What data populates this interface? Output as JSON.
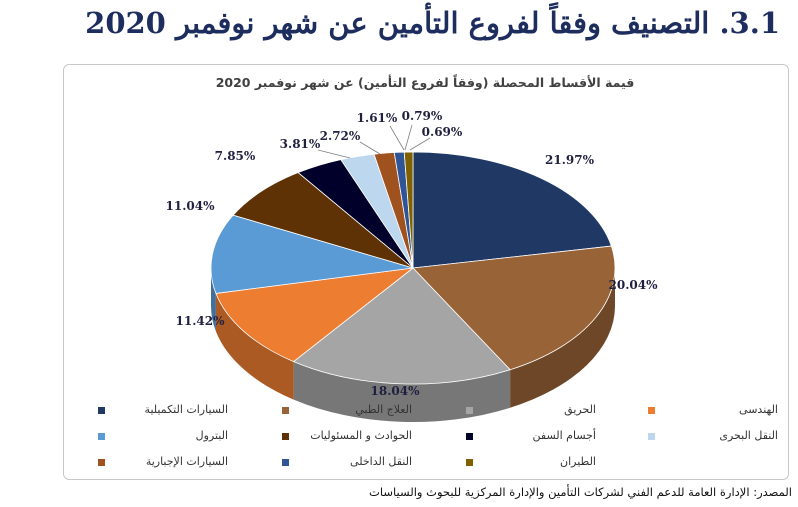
{
  "page": {
    "heading": "3.1. التصنيف وفقاً لفروع التأمين عن شهر نوفمبر 2020",
    "source": "المصدر: الإدارة العامة للدعم الفني لشركات التأمين والإدارة المركزية للبحوث والسياسات"
  },
  "chart_data": {
    "type": "pie",
    "title": "قيمة الأقساط المحصلة (وفقاً لفروع التأمين) عن شهر نوفمبر 2020",
    "legend_position": "bottom",
    "three_d": true,
    "series": [
      {
        "name": "السيارات التكميلية",
        "value": 21.97,
        "label": "21.97%",
        "color": "#1f3864"
      },
      {
        "name": "العلاج الطبي",
        "value": 20.04,
        "label": "20.04%",
        "color": "#986336"
      },
      {
        "name": "الحريق",
        "value": 18.04,
        "label": "18.04%",
        "color": "#a5a5a5"
      },
      {
        "name": "الهندسى",
        "value": 11.42,
        "label": "11.42%",
        "color": "#ed7d31"
      },
      {
        "name": "البترول",
        "value": 11.04,
        "label": "11.04%",
        "color": "#5b9bd5"
      },
      {
        "name": "الحوادث و المسئوليات",
        "value": 7.85,
        "label": "7.85%",
        "color": "#5e3205"
      },
      {
        "name": "أجسام السفن",
        "value": 3.81,
        "label": "3.81%",
        "color": "#00002a"
      },
      {
        "name": "النقل البحرى",
        "value": 2.72,
        "label": "2.72%",
        "color": "#bdd7ee"
      },
      {
        "name": "السيارات الإجبارية",
        "value": 1.61,
        "label": "1.61%",
        "color": "#a0521e"
      },
      {
        "name": "النقل الداخلى",
        "value": 0.79,
        "label": "0.79%",
        "color": "#2f5597"
      },
      {
        "name": "الطيران",
        "value": 0.69,
        "label": "0.69%",
        "color": "#806000"
      }
    ]
  }
}
